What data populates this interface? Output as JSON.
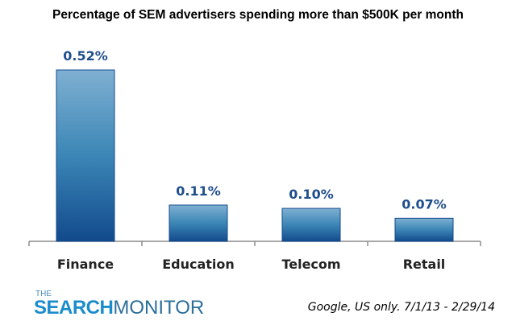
{
  "chart_data": {
    "type": "bar",
    "title": "Percentage of SEM advertisers spending more than $500K per month",
    "categories": [
      "Finance",
      "Education",
      "Telecom",
      "Retail"
    ],
    "values": [
      0.52,
      0.11,
      0.1,
      0.07
    ],
    "data_labels": [
      "0.52%",
      "0.11%",
      "0.10%",
      "0.07%"
    ],
    "unit": "%",
    "ylim": [
      0,
      0.52
    ],
    "grid": false,
    "legend": "none",
    "colors": {
      "bar_top": "#7fb0d2",
      "bar_mid": "#3b86b6",
      "bar_bottom": "#124a8c",
      "label": "#1f4e8c",
      "axis": "#8c8c8c"
    }
  },
  "footer": {
    "logo_the": "THE",
    "logo_search": "SEARCH",
    "logo_monitor": "MONITOR",
    "note": "Google, US only. 7/1/13 - 2/29/14"
  }
}
